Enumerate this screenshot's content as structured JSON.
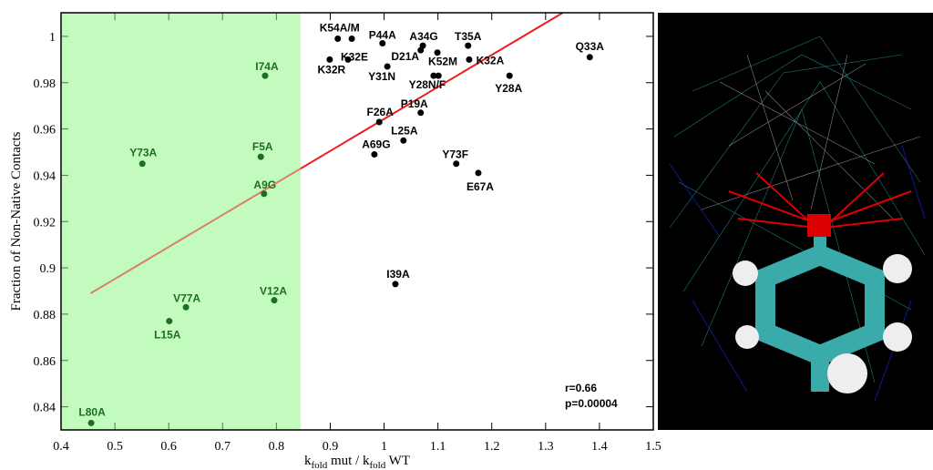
{
  "chart_data": {
    "type": "scatter",
    "xlabel_parts": [
      "k",
      "fold",
      " mut / k",
      "fold",
      " WT"
    ],
    "ylabel": "Fraction of Non-Native Contacts",
    "xlim": [
      0.4,
      1.5
    ],
    "ylim": [
      0.83,
      1.0102
    ],
    "xticks": [
      0.4,
      0.5,
      0.6,
      0.7,
      0.8,
      0.9,
      1,
      1.1,
      1.2,
      1.3,
      1.4,
      1.5
    ],
    "yticks": [
      0.84,
      0.86,
      0.88,
      0.9,
      0.92,
      0.94,
      0.96,
      0.98,
      1
    ],
    "shaded_region": {
      "x": [
        0.4,
        0.845
      ],
      "color": "#c4fbbf"
    },
    "fit_line": {
      "color": "#ee1c1c",
      "x": [
        0.455,
        1.332
      ],
      "y": [
        0.889,
        1.0102
      ]
    },
    "series": [
      {
        "color": "#000000",
        "label_color": "#000000",
        "labels": [
          "K54A/M",
          null,
          "P44A",
          "A34G",
          "D21A",
          "K52M",
          "T35A",
          "K32A",
          "K32E",
          "K32R",
          "Y31N",
          "Y28N/F",
          null,
          "Y28A",
          "Q33A",
          "P19A",
          "F26A",
          "L25A",
          "A69G",
          "Y73F",
          "E67A",
          "I39A"
        ],
        "x": [
          0.914,
          0.94,
          0.997,
          1.072,
          1.068,
          1.099,
          1.156,
          1.158,
          0.933,
          0.899,
          1.006,
          1.092,
          1.101,
          1.233,
          1.382,
          1.068,
          0.991,
          1.036,
          0.982,
          1.134,
          1.175,
          1.021
        ],
        "values": [
          0.999,
          0.999,
          0.997,
          0.996,
          0.994,
          0.993,
          0.996,
          0.99,
          0.99,
          0.99,
          0.987,
          0.983,
          0.983,
          0.983,
          0.991,
          0.967,
          0.963,
          0.955,
          0.949,
          0.945,
          0.941,
          0.893
        ]
      },
      {
        "color": "#1e6e1e",
        "label_color": "#1e6e1e",
        "labels": [
          "I74A",
          "Y73A",
          "F5A",
          "A9G",
          "V12A",
          "V77A",
          "L15A",
          "L80A"
        ],
        "x": [
          0.779,
          0.551,
          0.771,
          0.777,
          0.796,
          0.632,
          0.601,
          0.456
        ],
        "values": [
          0.983,
          0.945,
          0.948,
          0.932,
          0.886,
          0.883,
          0.877,
          0.833
        ]
      }
    ],
    "annotations": [
      "r=0.66",
      "p=0.00004"
    ]
  }
}
